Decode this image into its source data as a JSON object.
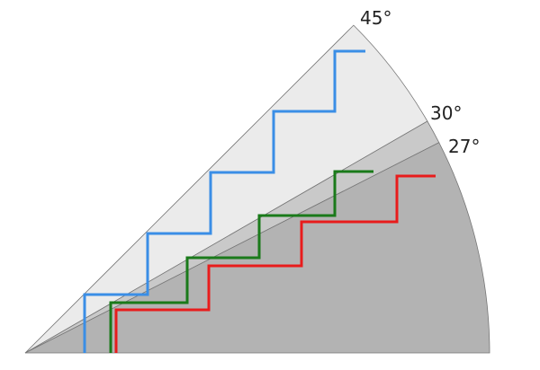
{
  "sectors": [
    {
      "from_deg": 30,
      "to_deg": 45,
      "fill": "#ebebeb"
    },
    {
      "from_deg": 27,
      "to_deg": 30,
      "fill": "#c9c9c9"
    },
    {
      "from_deg": 0,
      "to_deg": 27,
      "fill": "#b3b3b3"
    }
  ],
  "angle_labels": [
    {
      "deg": 45,
      "text": "45°"
    },
    {
      "deg": 30,
      "text": "30°"
    },
    {
      "deg": 27,
      "text": "27°"
    }
  ],
  "stairs": [
    {
      "color": "#3a8ee6",
      "angle_deg": 45
    },
    {
      "color": "#1a7a1a",
      "angle_deg": 30
    },
    {
      "color": "#e81c1c",
      "angle_deg": 27
    }
  ]
}
